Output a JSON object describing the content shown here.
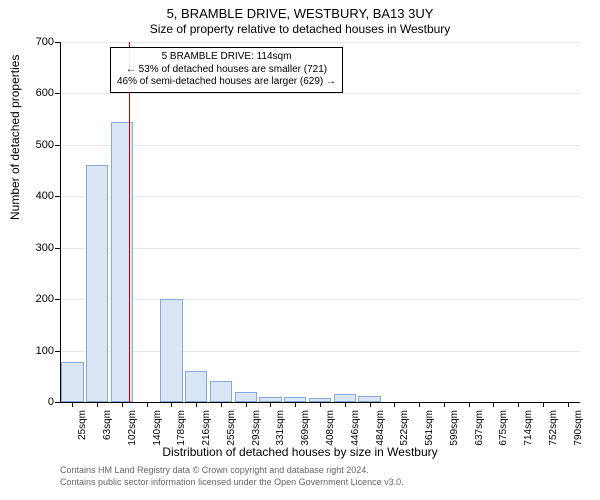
{
  "chart": {
    "type": "histogram",
    "title_main": "5, BRAMBLE DRIVE, WESTBURY, BA13 3UY",
    "title_sub": "Size of property relative to detached houses in Westbury",
    "title_main_fontsize": 13,
    "title_sub_fontsize": 12,
    "background_color": "#ffffff",
    "grid_color": "#e6e6e6",
    "bar_color": "#dae6f5",
    "bar_border_color": "#87aade",
    "marker_color": "#cc0000",
    "axis_color": "#000000",
    "y_axis": {
      "label": "Number of detached properties",
      "label_fontsize": 12,
      "min": 0,
      "max": 700,
      "ticks": [
        0,
        100,
        200,
        300,
        400,
        500,
        600,
        700
      ]
    },
    "x_axis": {
      "label": "Distribution of detached houses by size in Westbury",
      "label_fontsize": 12,
      "tick_labels": [
        "25sqm",
        "63sqm",
        "102sqm",
        "140sqm",
        "178sqm",
        "216sqm",
        "255sqm",
        "293sqm",
        "331sqm",
        "369sqm",
        "408sqm",
        "446sqm",
        "484sqm",
        "522sqm",
        "561sqm",
        "599sqm",
        "637sqm",
        "675sqm",
        "714sqm",
        "752sqm",
        "790sqm"
      ],
      "tick_fontsize": 10
    },
    "bars": {
      "values": [
        78,
        460,
        545,
        0,
        200,
        60,
        40,
        20,
        10,
        10,
        8,
        15,
        12,
        0,
        0,
        0,
        0,
        0,
        0,
        0,
        0
      ],
      "width_ratio": 0.9
    },
    "marker": {
      "position_index": 2.3,
      "annotation_lines": [
        "5 BRAMBLE DRIVE: 114sqm",
        "← 53% of detached houses are smaller (721)",
        "46% of semi-detached houses are larger (629) →"
      ],
      "annotation_fontsize": 10
    },
    "copyright": {
      "line1": "Contains HM Land Registry data © Crown copyright and database right 2024.",
      "line2": "Contains public sector information licensed under the Open Government Licence v3.0."
    }
  }
}
